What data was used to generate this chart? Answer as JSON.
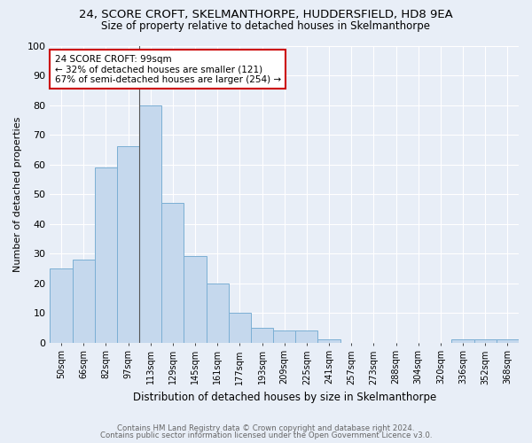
{
  "title": "24, SCORE CROFT, SKELMANTHORPE, HUDDERSFIELD, HD8 9EA",
  "subtitle": "Size of property relative to detached houses in Skelmanthorpe",
  "xlabel": "Distribution of detached houses by size in Skelmanthorpe",
  "ylabel": "Number of detached properties",
  "bar_color": "#c5d8ed",
  "bar_edge_color": "#7bafd4",
  "categories": [
    "50sqm",
    "66sqm",
    "82sqm",
    "97sqm",
    "113sqm",
    "129sqm",
    "145sqm",
    "161sqm",
    "177sqm",
    "193sqm",
    "209sqm",
    "225sqm",
    "241sqm",
    "257sqm",
    "273sqm",
    "288sqm",
    "304sqm",
    "320sqm",
    "336sqm",
    "352sqm",
    "368sqm"
  ],
  "values": [
    25,
    28,
    59,
    66,
    80,
    47,
    29,
    20,
    10,
    5,
    4,
    4,
    1,
    0,
    0,
    0,
    0,
    0,
    1,
    1,
    1
  ],
  "ylim": [
    0,
    100
  ],
  "yticks": [
    0,
    10,
    20,
    30,
    40,
    50,
    60,
    70,
    80,
    90,
    100
  ],
  "annotation_text": "24 SCORE CROFT: 99sqm\n← 32% of detached houses are smaller (121)\n67% of semi-detached houses are larger (254) →",
  "annotation_box_color": "#ffffff",
  "annotation_box_edge": "#cc0000",
  "footer_line1": "Contains HM Land Registry data © Crown copyright and database right 2024.",
  "footer_line2": "Contains public sector information licensed under the Open Government Licence v3.0.",
  "bg_color": "#e8eef7",
  "plot_bg_color": "#e8eef7",
  "grid_color": "#ffffff"
}
